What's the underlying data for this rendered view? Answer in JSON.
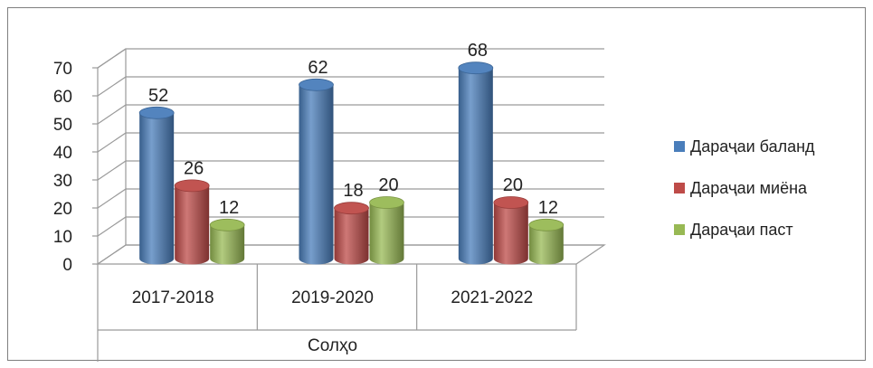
{
  "chart_data": {
    "type": "bar",
    "style": "3d-cylinder",
    "title": "",
    "xlabel": "Солҳо",
    "ylabel": "",
    "categories": [
      "2017-2018",
      "2019-2020",
      "2021-2022"
    ],
    "series": [
      {
        "name": "Дараҷаи баланд",
        "color": "#4a7ebb",
        "values": [
          52,
          62,
          68
        ]
      },
      {
        "name": "Дараҷаи миёна",
        "color": "#be4b48",
        "values": [
          26,
          18,
          20
        ]
      },
      {
        "name": "Дараҷаи паст",
        "color": "#98b954",
        "values": [
          12,
          20,
          12
        ]
      }
    ],
    "ylim": [
      0,
      70
    ],
    "yticks": [
      0,
      10,
      20,
      30,
      40,
      50,
      60,
      70
    ],
    "grid": true,
    "legend_position": "right",
    "data_labels": true
  }
}
